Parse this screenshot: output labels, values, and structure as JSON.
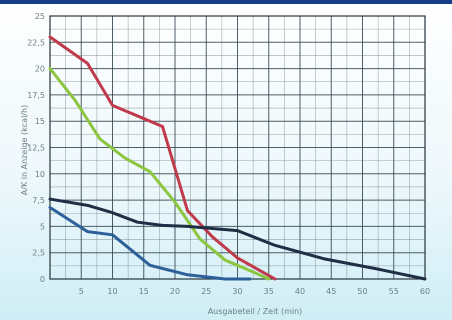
{
  "chart_data": {
    "type": "line",
    "title": "",
    "xlabel": "Ausgabeteil / Zeit (min)",
    "ylabel": "A/K in Anzeige (kcal/h)",
    "x_ticks": [
      0,
      5,
      10,
      15,
      20,
      25,
      30,
      35,
      40,
      45,
      50,
      55,
      60
    ],
    "x_tick_labels": [
      "",
      "5",
      "10",
      "15",
      "20",
      "25",
      "30",
      "35",
      "40",
      "45",
      "50",
      "55",
      "60"
    ],
    "y_ticks": [
      0,
      2.5,
      5,
      7.5,
      10,
      12.5,
      15,
      17.5,
      20,
      22.5,
      25
    ],
    "y_tick_labels": [
      "0",
      "2,5",
      "5",
      "7,5",
      "10",
      "12,5",
      "15",
      "17,5",
      "20",
      "22,5",
      "25"
    ],
    "xlim": [
      0,
      60
    ],
    "ylim": [
      0,
      25
    ],
    "grid": true,
    "series": [
      {
        "color": "#c03a4c",
        "x": [
          0,
          6,
          10,
          14,
          18,
          22,
          26,
          30,
          36
        ],
        "y": [
          23,
          20.5,
          16.5,
          15.5,
          14.5,
          6.5,
          4,
          2,
          0
        ]
      },
      {
        "color": "#8cc640",
        "x": [
          0,
          4,
          8,
          12,
          16,
          20,
          24,
          28,
          32,
          35
        ],
        "y": [
          20,
          17,
          13.3,
          11.5,
          10.2,
          7.3,
          3.8,
          1.8,
          0.8,
          0
        ]
      },
      {
        "color": "#1f2d45",
        "x": [
          0,
          6,
          10,
          14,
          18,
          22,
          26,
          30,
          36,
          44,
          52,
          60
        ],
        "y": [
          7.6,
          7,
          6.3,
          5.4,
          5.1,
          5,
          4.8,
          4.6,
          3.2,
          1.9,
          1,
          0
        ]
      },
      {
        "color": "#2d5f9a",
        "x": [
          0,
          6,
          10,
          16,
          22,
          28,
          32
        ],
        "y": [
          6.8,
          4.5,
          4.2,
          1.3,
          0.4,
          0,
          0
        ]
      }
    ]
  }
}
